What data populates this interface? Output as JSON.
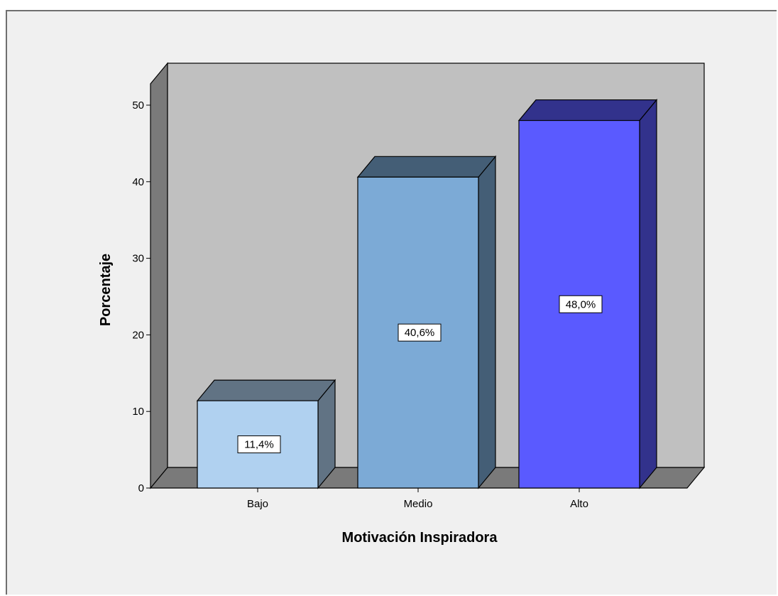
{
  "chart_data": {
    "type": "bar",
    "style": "3d",
    "categories": [
      "Bajo",
      "Medio",
      "Alto"
    ],
    "values": [
      11.4,
      40.6,
      48.0
    ],
    "data_labels": [
      "11,4%",
      "40,6%",
      "48,0%"
    ],
    "colors": [
      "#b0d1f0",
      "#7caad6",
      "#5a5aff"
    ],
    "title": "",
    "xlabel": "Motivación Inspiradora",
    "ylabel": "Porcentaje",
    "ylim": [
      0,
      50
    ],
    "yticks": [
      "0",
      "10",
      "20",
      "30",
      "40",
      "50"
    ],
    "plot_background": "#c0c0c0",
    "legend": "none",
    "grid": false
  }
}
